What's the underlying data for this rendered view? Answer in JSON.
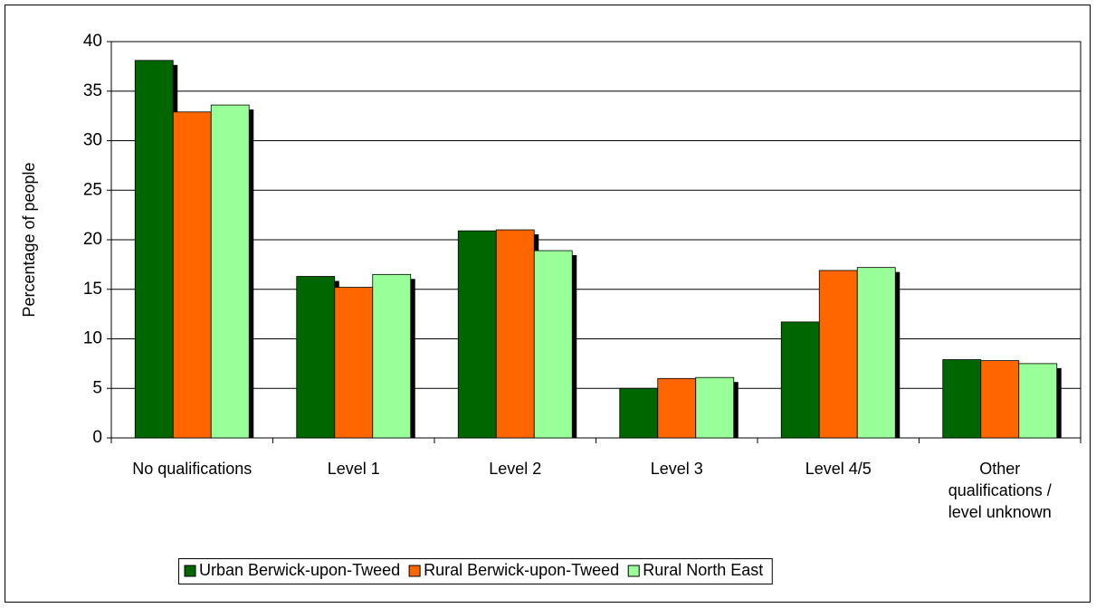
{
  "chart_data": {
    "type": "bar",
    "y_label": "Percentage of people",
    "categories": [
      "No qualifications",
      "Level 1",
      "Level 2",
      "Level 3",
      "Level 4/5",
      "Other qualifications / level unknown"
    ],
    "series": [
      {
        "name": "Urban Berwick-upon-Tweed",
        "color": "#006600",
        "values": [
          38.1,
          16.3,
          20.9,
          5.0,
          11.7,
          7.9
        ]
      },
      {
        "name": "Rural Berwick-upon-Tweed",
        "color": "#ff6600",
        "values": [
          32.9,
          15.2,
          21.0,
          6.0,
          16.9,
          7.8
        ]
      },
      {
        "name": "Rural North East",
        "color": "#99ff99",
        "values": [
          33.6,
          16.5,
          18.9,
          6.1,
          17.2,
          7.5
        ]
      }
    ],
    "ylim": [
      0,
      40
    ],
    "yticks": [
      0,
      5,
      10,
      15,
      20,
      25,
      30,
      35,
      40
    ],
    "grid": true,
    "legend": "bottom"
  }
}
